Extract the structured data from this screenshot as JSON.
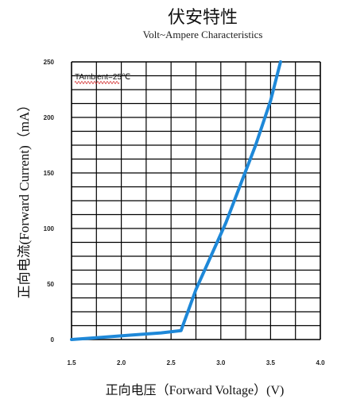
{
  "chart_data": {
    "type": "line",
    "title": "伏安特性",
    "subtitle": "Volt~Ampere Characteristics",
    "xlabel": "正向电压（Forward Voltage）(V)",
    "ylabel": "正向电流(Forward Current)（mA）",
    "annotation": "TAmbient=25℃",
    "xlim": [
      1.5,
      4.0
    ],
    "ylim": [
      0,
      250
    ],
    "x_ticks": [
      "1.5",
      "2.0",
      "2.5",
      "3.0",
      "3.5",
      "4.0"
    ],
    "x_tick_values": [
      1.5,
      2.0,
      2.5,
      3.0,
      3.5,
      4.0
    ],
    "y_ticks": [
      "0",
      "50",
      "100",
      "150",
      "200",
      "250"
    ],
    "y_tick_values": [
      0,
      50,
      100,
      150,
      200,
      250
    ],
    "grid": true,
    "series_color": "#1e88d8",
    "series": [
      {
        "x": [
          1.5,
          1.8,
          2.1,
          2.4,
          2.6,
          2.75,
          2.9,
          3.05,
          3.2,
          3.35,
          3.5,
          3.6
        ],
        "y": [
          0,
          2,
          4,
          6,
          8,
          45,
          75,
          105,
          140,
          175,
          215,
          250
        ]
      }
    ]
  }
}
